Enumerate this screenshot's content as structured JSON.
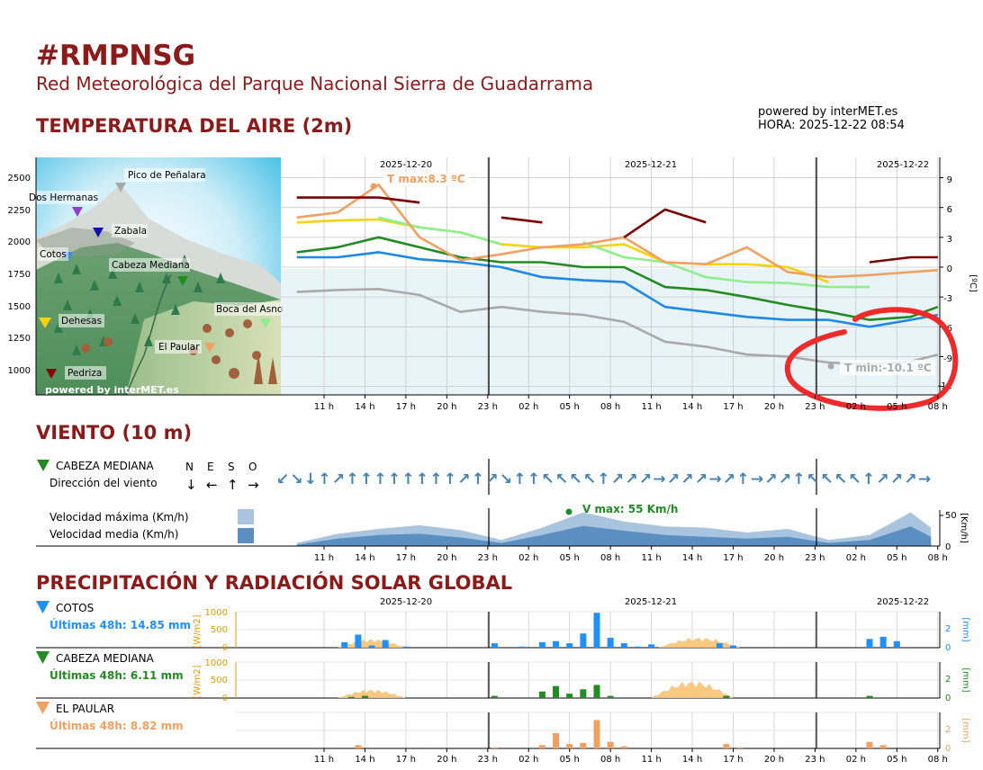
{
  "header": {
    "title": "#RMPNSG",
    "subtitle": "Red Meteorológica del Parque Nacional Sierra de Guadarrama",
    "powered": "powered by interMET.es",
    "hora": "HORA: 2025-12-22 08:54"
  },
  "temperature": {
    "section_title": "TEMPERATURA DEL AIRE (2m)",
    "tmax_label": "T max:8.3 ºC",
    "tmin_label": "T min:-10.1 ºC",
    "map_watermark": "powered by interMET.es",
    "unit_label": "[ºC]",
    "elevation_ticks": [
      "2500",
      "2250",
      "2000",
      "1750",
      "1500",
      "1250",
      "1000"
    ],
    "temp_ticks": [
      "9",
      "6",
      "3",
      "0",
      "-3",
      "-6",
      "-9",
      "-12"
    ]
  },
  "time_axis": {
    "dates": [
      "2025-12-20",
      "2025-12-21",
      "2025-12-22"
    ],
    "ticks": [
      "11 h",
      "14 h",
      "17 h",
      "20 h",
      "23 h",
      "02 h",
      "05 h",
      "08 h",
      "11 h",
      "14 h",
      "17 h",
      "20 h",
      "23 h",
      "02 h",
      "05 h",
      "08 h"
    ]
  },
  "stations": [
    {
      "name": "Pico de Peñalara",
      "color": "#aaaaaa",
      "elev": 2428
    },
    {
      "name": "Dos Hermanas",
      "color": "#8e44c8",
      "elev": 2225
    },
    {
      "name": "Zabala",
      "color": "#1111aa",
      "elev": 2075
    },
    {
      "name": "Cotos",
      "color": "#3a8ee6",
      "elev": 1830
    },
    {
      "name": "Cabeza Mediana",
      "color": "#228b22",
      "elev": 1690
    },
    {
      "name": "Boca del Asno",
      "color": "#90ee90",
      "elev": 1400
    },
    {
      "name": "Dehesas",
      "color": "#f5d311",
      "elev": 1270
    },
    {
      "name": "El Paular",
      "color": "#f0a060",
      "elev": 1160
    },
    {
      "name": "Pedriza",
      "color": "#8b0000",
      "elev": 1000
    }
  ],
  "wind": {
    "section_title": "VIENTO (10 m)",
    "station": "CABEZA MEDIANA",
    "direction_label": "Dirección del viento",
    "compass": [
      "N",
      "E",
      "S",
      "O"
    ],
    "compass_arrows": [
      "↓",
      "←",
      "↑",
      "→"
    ],
    "arrows": [
      "↙",
      "↘",
      "↓",
      "↑",
      "↗",
      "↑",
      "↑",
      "↑",
      "↑",
      "↑",
      "↑",
      "↑",
      "↑",
      "↗",
      "↑",
      "↗",
      "↘",
      "↑",
      "↑",
      "↖",
      "↖",
      "↖",
      "↖",
      "↑",
      "↗",
      "↗",
      "↗",
      "→",
      "↗",
      "↗",
      "↗",
      "→",
      "↗",
      "↑",
      "→",
      "↗",
      "↗",
      "↑",
      "↖",
      "↖",
      "↖",
      "↖",
      "↑",
      "↗",
      "↗",
      "↗",
      "→"
    ],
    "vmax_label": "Velocidad máxima (Km/h)",
    "vmed_label": "Velocidad media   (Km/h)",
    "vmax_annot": "V max:  55 Km/h",
    "unit": "[Km/h]",
    "ticks": [
      "50",
      "0"
    ]
  },
  "precip": {
    "section_title": "PRECIPITACIÓN Y RADIACIÓN SOLAR GLOBAL",
    "rad_unit": "[W/m2]",
    "mm_unit": "[mm]",
    "stations": [
      {
        "name": "COTOS",
        "total": "Últimas 48h: 14.85 mm",
        "color": "#1e90ff"
      },
      {
        "name": "CABEZA MEDIANA",
        "total": "Últimas 48h: 6.11 mm",
        "color": "#228b22"
      },
      {
        "name": "EL PAULAR",
        "total": "Últimas 48h: 8.82 mm",
        "color": "#f0a060"
      }
    ],
    "rad_ticks": [
      "1000",
      "500",
      "0"
    ],
    "mm_ticks": [
      "2",
      "0"
    ]
  },
  "chart_data": [
    {
      "type": "line",
      "title": "TEMPERATURA DEL AIRE (2m)",
      "ylabel": "[ºC]",
      "ylim": [
        -13,
        11
      ],
      "x": [
        "2025-12-20 09:00",
        "2025-12-20 12:00",
        "2025-12-20 15:00",
        "2025-12-20 18:00",
        "2025-12-20 21:00",
        "2025-12-21 00:00",
        "2025-12-21 03:00",
        "2025-12-21 06:00",
        "2025-12-21 09:00",
        "2025-12-21 12:00",
        "2025-12-21 15:00",
        "2025-12-21 18:00",
        "2025-12-21 21:00",
        "2025-12-22 00:00",
        "2025-12-22 03:00",
        "2025-12-22 06:00",
        "2025-12-22 08:00"
      ],
      "series": [
        {
          "name": "Pico de Peñalara",
          "color": "#aaaaaa",
          "values": [
            -2.5,
            -2.3,
            -2.2,
            -2.8,
            -4.5,
            -4.0,
            -4.5,
            -4.8,
            -5.5,
            -7.5,
            -8.0,
            -8.8,
            -9.0,
            -9.6,
            -9.8,
            -9.5,
            -8.8
          ]
        },
        {
          "name": "Cotos",
          "color": "#1e88e5",
          "values": [
            1.0,
            1.0,
            1.5,
            0.8,
            0.5,
            0.0,
            -1.0,
            -1.3,
            -1.5,
            -4.0,
            -4.5,
            -5.0,
            -5.3,
            -5.3,
            -6.0,
            -5.3,
            -4.8
          ]
        },
        {
          "name": "Cabeza Mediana",
          "color": "#228b22",
          "values": [
            1.5,
            2.0,
            3.0,
            2.0,
            1.0,
            0.5,
            0.5,
            0.0,
            0.0,
            -2.0,
            -2.3,
            -3.0,
            -3.8,
            -4.5,
            -5.3,
            -5.0,
            -4.0
          ]
        },
        {
          "name": "Dehesas",
          "color": "#f5d311",
          "values": [
            4.5,
            4.7,
            4.8,
            4.0,
            3.5,
            2.3,
            2.0,
            2.0,
            2.3,
            0.5,
            0.3,
            0.3,
            0.0,
            -1.5,
            null,
            null,
            null
          ]
        },
        {
          "name": "Boca del Asno",
          "color": "#90ee90",
          "values": [
            null,
            null,
            5.0,
            4.0,
            3.5,
            2.3,
            null,
            2.5,
            1.0,
            0.5,
            -1.0,
            -1.5,
            -1.6,
            -2.0,
            -2.0,
            null,
            null
          ]
        },
        {
          "name": "El Paular",
          "color": "#f0a060",
          "values": [
            5.0,
            5.5,
            8.3,
            3.0,
            0.7,
            1.3,
            2.0,
            2.3,
            3.0,
            0.5,
            0.3,
            2.0,
            -0.5,
            -1.0,
            -0.8,
            -0.5,
            -0.3
          ]
        },
        {
          "name": "Pedriza",
          "color": "#7a0000",
          "values": [
            7.0,
            7.0,
            7.0,
            6.5,
            null,
            5.0,
            4.5,
            null,
            3.0,
            5.8,
            4.5,
            null,
            null,
            null,
            0.5,
            1.0,
            1.0
          ]
        }
      ]
    },
    {
      "type": "area",
      "title": "VIENTO (10 m) - CABEZA MEDIANA",
      "ylabel": "[Km/h]",
      "ylim": [
        0,
        60
      ],
      "x": [
        "2025-12-20 09:00",
        "2025-12-20 12:00",
        "2025-12-20 15:00",
        "2025-12-20 18:00",
        "2025-12-20 21:00",
        "2025-12-21 00:00",
        "2025-12-21 03:00",
        "2025-12-21 06:00",
        "2025-12-21 09:00",
        "2025-12-21 12:00",
        "2025-12-21 15:00",
        "2025-12-21 18:00",
        "2025-12-21 21:00",
        "2025-12-22 00:00",
        "2025-12-22 03:00",
        "2025-12-22 06:00",
        "2025-12-22 07:30"
      ],
      "series": [
        {
          "name": "Velocidad máxima (Km/h)",
          "color": "#a9c4de",
          "values": [
            5,
            20,
            28,
            34,
            26,
            10,
            30,
            55,
            40,
            32,
            30,
            22,
            28,
            10,
            18,
            55,
            30
          ]
        },
        {
          "name": "Velocidad media (Km/h)",
          "color": "#5b8ec1",
          "values": [
            2,
            12,
            18,
            20,
            14,
            5,
            18,
            33,
            25,
            18,
            15,
            12,
            15,
            5,
            10,
            32,
            15
          ]
        }
      ]
    }
  ]
}
